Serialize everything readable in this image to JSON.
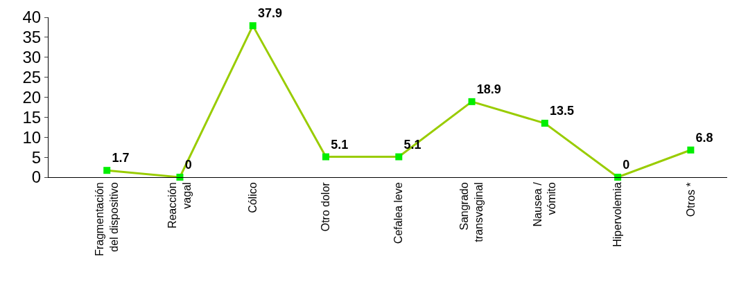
{
  "chart_data": {
    "type": "line",
    "categories": [
      "Fragmentación\ndel dispositivo",
      "Reacción\nvagal",
      "Cólico",
      "Otro dolor",
      "Cefalea leve",
      "Sangrado\ntransvaginal",
      "Nausea /\nvómito",
      "Hipervolemia",
      "Otros *"
    ],
    "series": [
      {
        "color": "#99cc00",
        "colors": [
          "#00ee00",
          "#00ee00",
          "#00ee00",
          "#00ee00",
          "#00ee00",
          "#00ee00",
          "#00ee00",
          "#00ee00",
          "#00ee00"
        ],
        "values": [
          1.7,
          0,
          37.9,
          5.1,
          5.1,
          18.9,
          13.5,
          0,
          6.8
        ]
      }
    ],
    "ylim": [
      0,
      40
    ],
    "yticks": [
      0,
      5,
      10,
      15,
      20,
      25,
      30,
      35,
      40
    ],
    "legend": false,
    "marker": "square",
    "line_style": "solid",
    "data_labels": true
  }
}
